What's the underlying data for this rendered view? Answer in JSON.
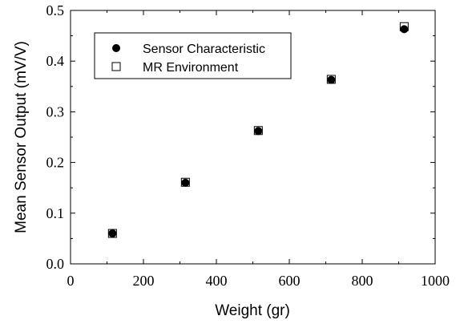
{
  "chart_data": {
    "type": "scatter",
    "xlabel": "Weight (gr)",
    "ylabel": "Mean Sensor Output (mV/V)",
    "xlim": [
      0,
      1000
    ],
    "ylim": [
      0,
      0.5
    ],
    "x_ticks": [
      "0",
      "200",
      "400",
      "600",
      "800",
      "1000"
    ],
    "y_ticks": [
      "0.0",
      "0.1",
      "0.2",
      "0.3",
      "0.4",
      "0.5"
    ],
    "grid": false,
    "legend_position": "top-left",
    "series": [
      {
        "name": "Sensor Characteristic",
        "marker": "filled-circle",
        "color": "#000000",
        "points": [
          {
            "x": 115,
            "y": 0.06
          },
          {
            "x": 315,
            "y": 0.16
          },
          {
            "x": 515,
            "y": 0.262
          },
          {
            "x": 715,
            "y": 0.363
          },
          {
            "x": 915,
            "y": 0.463
          }
        ]
      },
      {
        "name": "MR Environment",
        "marker": "open-square",
        "color": "#000000",
        "points": [
          {
            "x": 115,
            "y": 0.06
          },
          {
            "x": 315,
            "y": 0.161
          },
          {
            "x": 515,
            "y": 0.263
          },
          {
            "x": 715,
            "y": 0.364
          },
          {
            "x": 915,
            "y": 0.468
          }
        ]
      }
    ]
  }
}
